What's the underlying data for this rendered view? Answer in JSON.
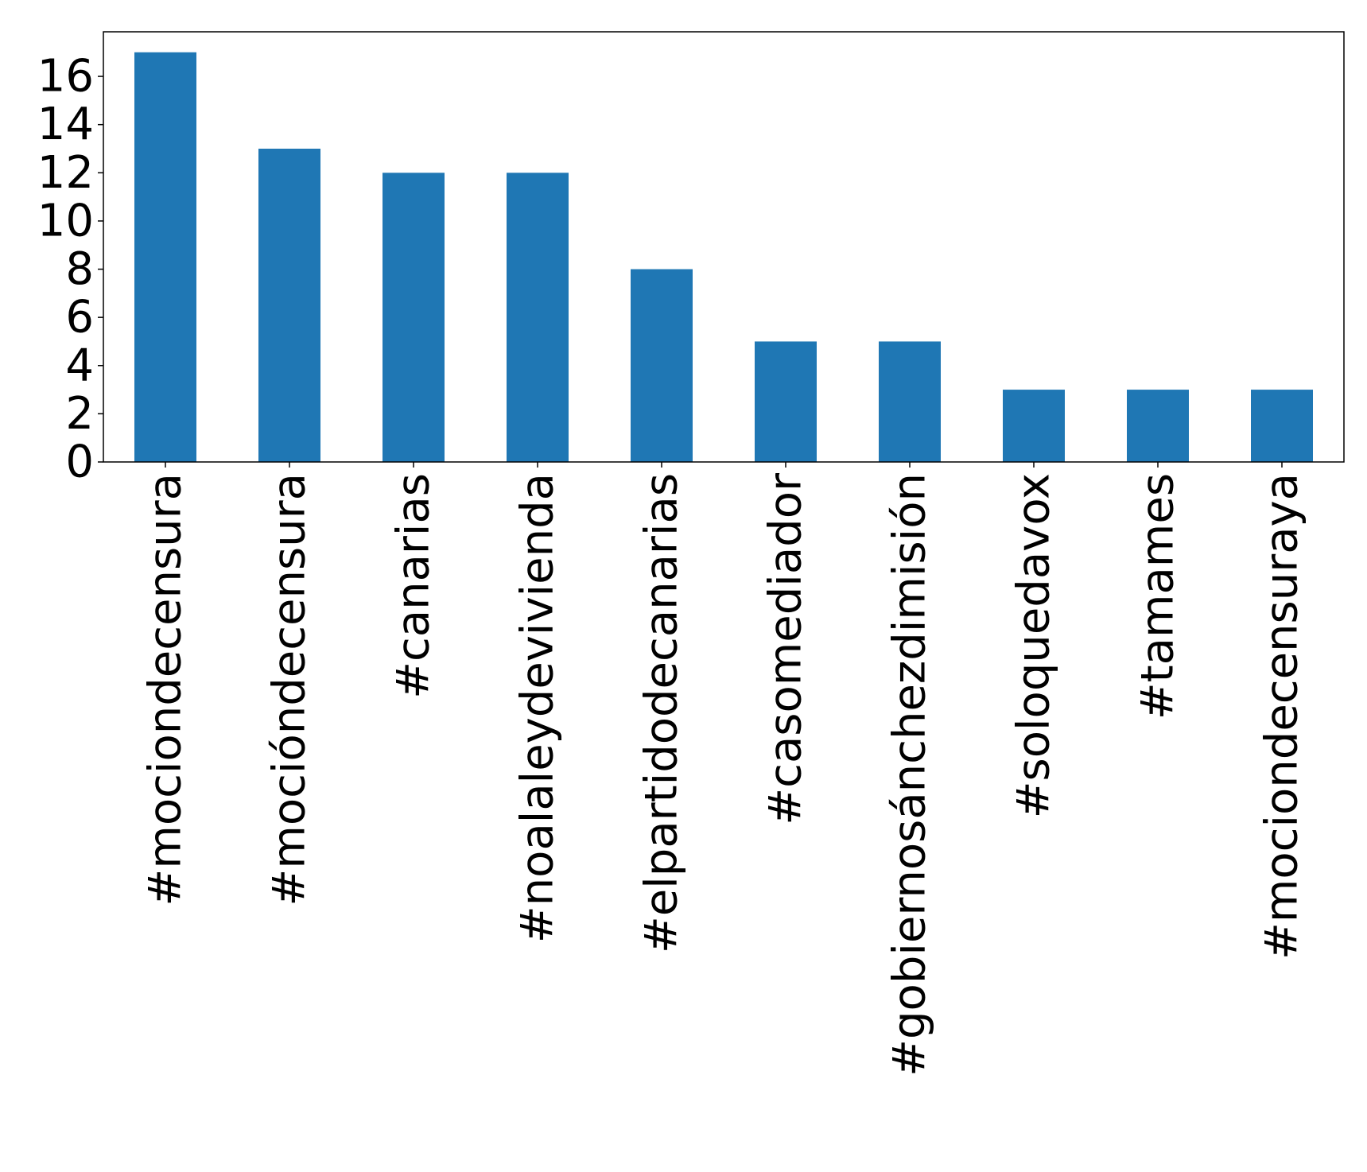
{
  "chart_data": {
    "type": "bar",
    "title": "",
    "xlabel": "",
    "ylabel": "",
    "categories": [
      "#mociondecensura",
      "#mocióndecensura",
      "#canarias",
      "#noalaleydevivienda",
      "#elpartidodecanarias",
      "#casomediador",
      "#gobiernosánchezdimisión",
      "#soloquedavox",
      "#tamames",
      "#mociondecensuraya"
    ],
    "values": [
      17,
      13,
      12,
      12,
      8,
      5,
      5,
      3,
      3,
      3
    ],
    "ylim": [
      0,
      17.85
    ],
    "yticks": [
      0,
      2,
      4,
      6,
      8,
      10,
      12,
      14,
      16
    ],
    "ytick_labels": [
      "0",
      "2",
      "4",
      "6",
      "8",
      "10",
      "12",
      "14",
      "16"
    ],
    "bar_color": "#1f77b4",
    "grid": false,
    "legend": "none",
    "xtick_rotation": "vertical"
  }
}
